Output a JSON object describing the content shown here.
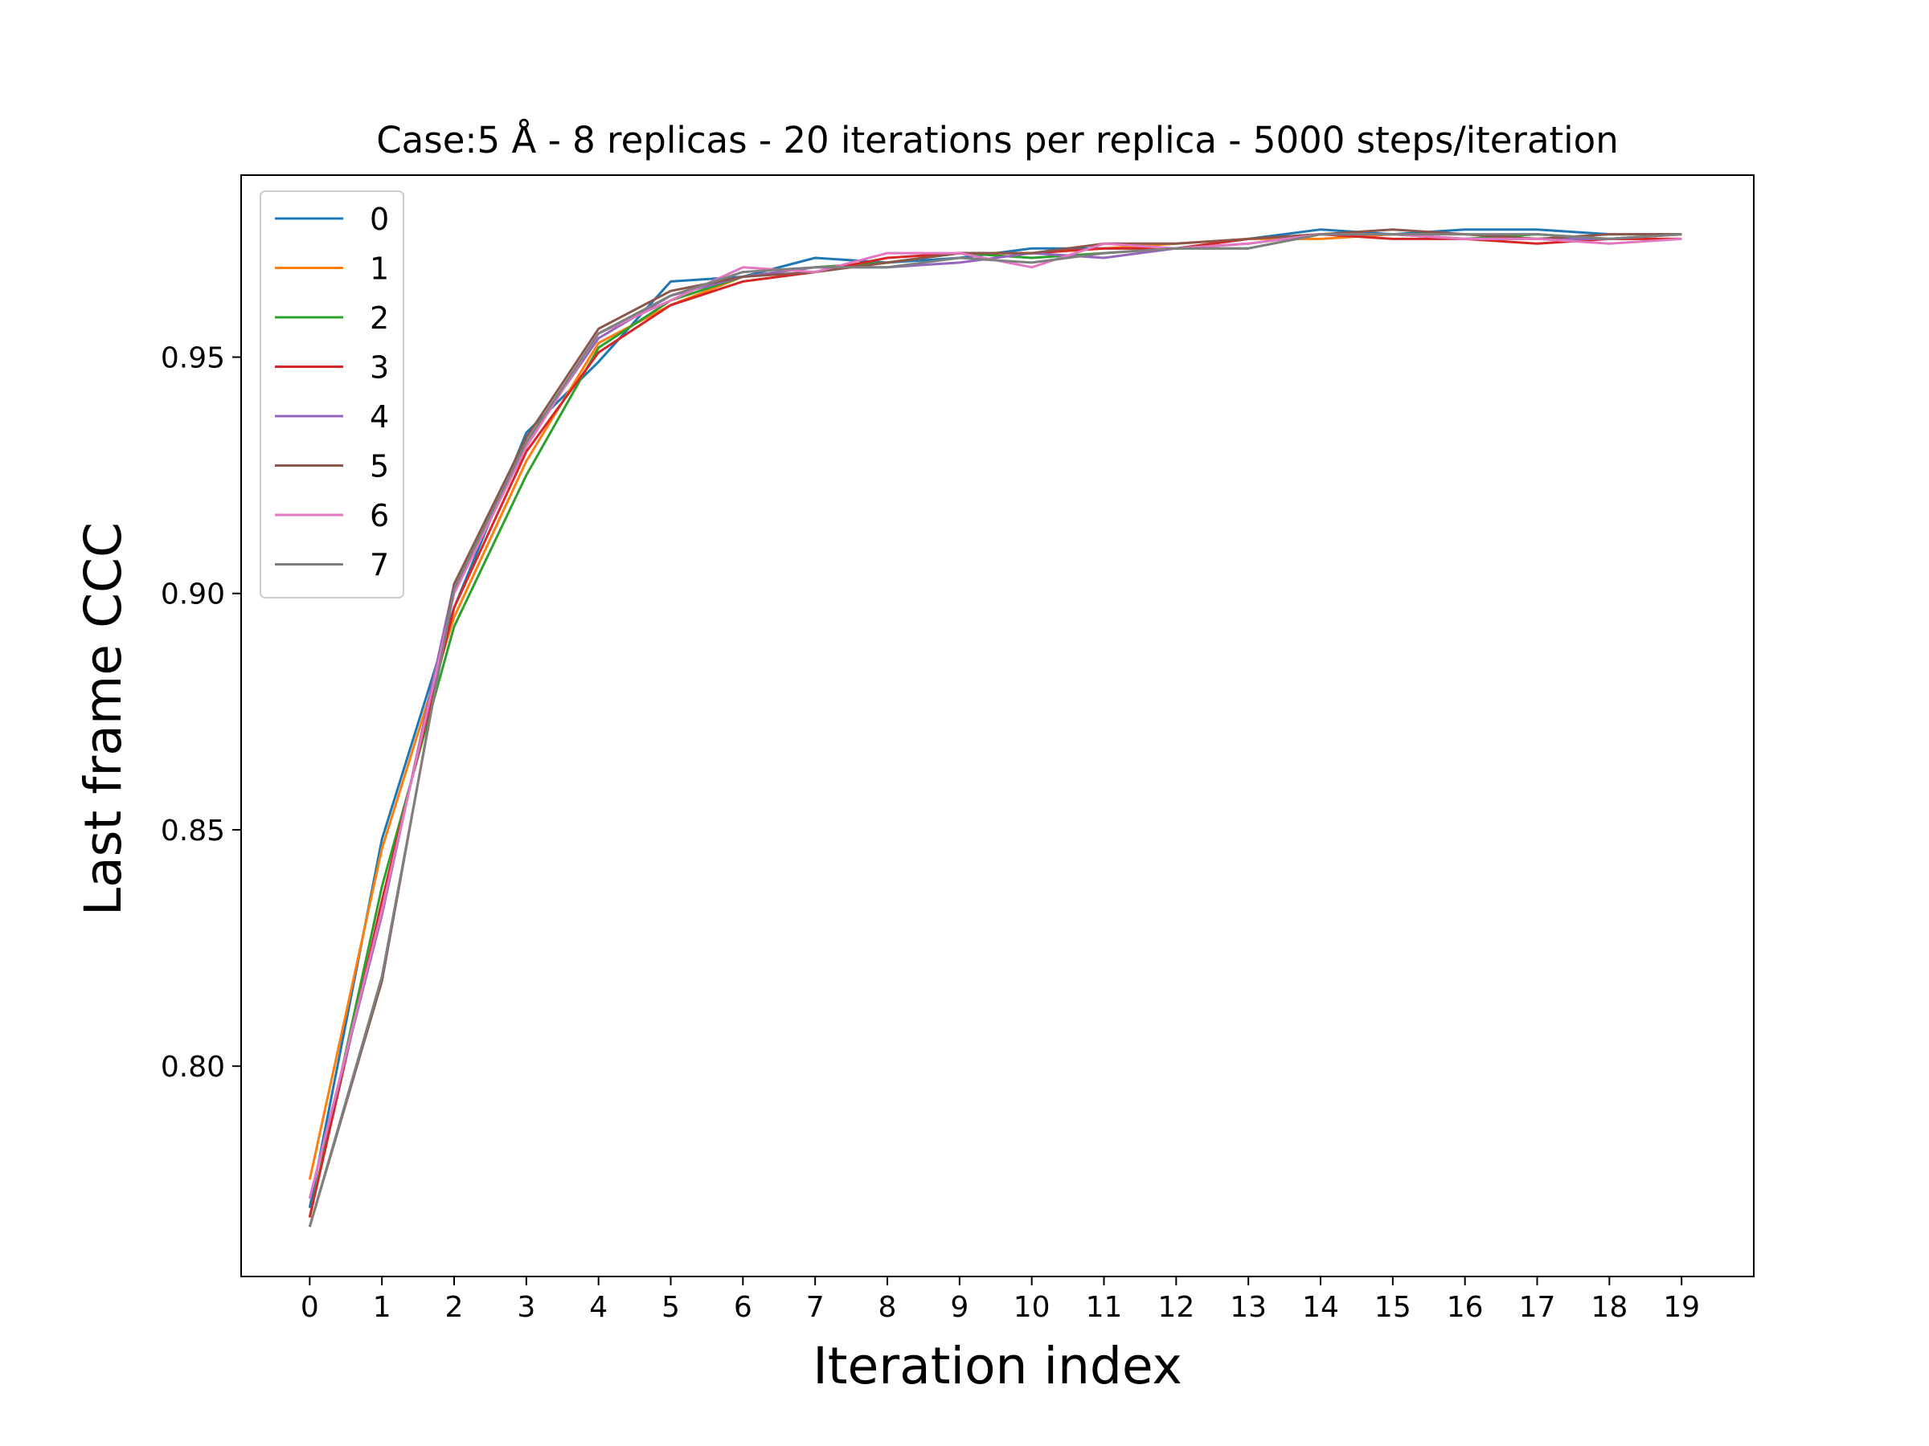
{
  "chart_data": {
    "type": "line",
    "title": "Case:5 Å - 8 replicas - 20 iterations per replica - 5000 steps/iteration",
    "xlabel": "Iteration index",
    "ylabel": "Last frame CCC",
    "xlim": [
      -0.95,
      20.0
    ],
    "ylim": [
      0.7555,
      0.9885
    ],
    "x": [
      0,
      1,
      2,
      3,
      4,
      5,
      6,
      7,
      8,
      9,
      10,
      11,
      12,
      13,
      14,
      15,
      16,
      17,
      18,
      19
    ],
    "xticks": [
      "0",
      "1",
      "2",
      "3",
      "4",
      "5",
      "6",
      "7",
      "8",
      "9",
      "10",
      "11",
      "12",
      "13",
      "14",
      "15",
      "16",
      "17",
      "18",
      "19"
    ],
    "yticks": [
      {
        "value": 0.8,
        "label": "0.80"
      },
      {
        "value": 0.85,
        "label": "0.85"
      },
      {
        "value": 0.9,
        "label": "0.90"
      },
      {
        "value": 0.95,
        "label": "0.95"
      }
    ],
    "grid": false,
    "legend_position": "top-left",
    "series": [
      {
        "name": "0",
        "color": "#1f77b4",
        "values": [
          0.77,
          0.848,
          0.897,
          0.934,
          0.949,
          0.966,
          0.967,
          0.971,
          0.97,
          0.971,
          0.973,
          0.973,
          0.973,
          0.975,
          0.977,
          0.976,
          0.977,
          0.977,
          0.976,
          0.976
        ]
      },
      {
        "name": "1",
        "color": "#ff7f0e",
        "values": [
          0.776,
          0.846,
          0.895,
          0.928,
          0.953,
          0.961,
          0.967,
          0.969,
          0.97,
          0.972,
          0.972,
          0.973,
          0.974,
          0.975,
          0.975,
          0.976,
          0.976,
          0.975,
          0.975,
          0.975
        ]
      },
      {
        "name": "2",
        "color": "#2ca02c",
        "values": [
          0.768,
          0.838,
          0.893,
          0.925,
          0.952,
          0.962,
          0.967,
          0.969,
          0.97,
          0.972,
          0.971,
          0.972,
          0.973,
          0.973,
          0.976,
          0.976,
          0.975,
          0.976,
          0.975,
          0.976
        ]
      },
      {
        "name": "3",
        "color": "#d62728",
        "values": [
          0.768,
          0.835,
          0.897,
          0.93,
          0.951,
          0.961,
          0.966,
          0.968,
          0.971,
          0.972,
          0.972,
          0.973,
          0.973,
          0.975,
          0.976,
          0.975,
          0.975,
          0.974,
          0.975,
          0.975
        ]
      },
      {
        "name": "4",
        "color": "#9467bd",
        "values": [
          0.772,
          0.832,
          0.902,
          0.932,
          0.954,
          0.963,
          0.967,
          0.969,
          0.969,
          0.97,
          0.972,
          0.971,
          0.973,
          0.974,
          0.976,
          0.976,
          0.975,
          0.975,
          0.975,
          0.976
        ]
      },
      {
        "name": "5",
        "color": "#8c564b",
        "values": [
          0.766,
          0.818,
          0.902,
          0.933,
          0.956,
          0.964,
          0.967,
          0.968,
          0.97,
          0.972,
          0.972,
          0.974,
          0.974,
          0.975,
          0.976,
          0.977,
          0.976,
          0.975,
          0.976,
          0.976
        ]
      },
      {
        "name": "6",
        "color": "#e377c2",
        "values": [
          0.772,
          0.833,
          0.9,
          0.931,
          0.955,
          0.962,
          0.969,
          0.968,
          0.972,
          0.972,
          0.969,
          0.974,
          0.973,
          0.974,
          0.976,
          0.976,
          0.975,
          0.975,
          0.974,
          0.975
        ]
      },
      {
        "name": "7",
        "color": "#7f7f7f",
        "values": [
          0.766,
          0.819,
          0.901,
          0.932,
          0.955,
          0.963,
          0.968,
          0.969,
          0.969,
          0.971,
          0.97,
          0.972,
          0.973,
          0.973,
          0.976,
          0.976,
          0.976,
          0.976,
          0.975,
          0.976
        ]
      }
    ]
  }
}
